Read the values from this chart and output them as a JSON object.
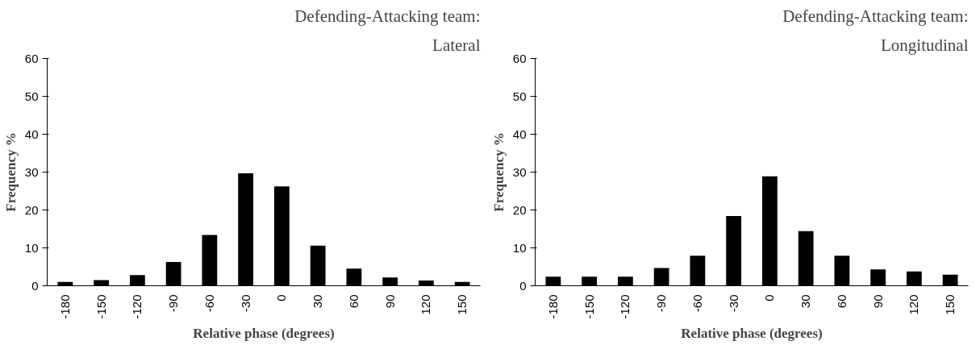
{
  "chart_data": [
    {
      "type": "bar",
      "title": "Defending-Attacking team:",
      "subtitle": "Lateral",
      "xlabel": "Relative phase (degrees)",
      "ylabel": "Frequency %",
      "categories": [
        "-180",
        "-150",
        "-120",
        "-90",
        "-60",
        "-30",
        "0",
        "30",
        "60",
        "90",
        "120",
        "150"
      ],
      "values": [
        1.0,
        1.5,
        2.8,
        6.3,
        13.4,
        29.7,
        26.2,
        10.6,
        4.5,
        2.2,
        1.4,
        1.0
      ],
      "color": "#000000",
      "ylim": [
        0,
        60
      ],
      "yticks": [
        0,
        10,
        20,
        30,
        40,
        50,
        60
      ],
      "grid": false
    },
    {
      "type": "bar",
      "title": "Defending-Attacking team:",
      "subtitle": "Longitudinal",
      "xlabel": "Relative phase (degrees)",
      "ylabel": "Frequency %",
      "categories": [
        "-180",
        "-150",
        "-120",
        "-90",
        "-60",
        "-30",
        "0",
        "30",
        "60",
        "90",
        "120",
        "150"
      ],
      "values": [
        2.4,
        2.4,
        2.4,
        4.7,
        7.9,
        18.4,
        28.9,
        14.4,
        7.9,
        4.3,
        3.8,
        2.9
      ],
      "color": "#000000",
      "ylim": [
        0,
        60
      ],
      "yticks": [
        0,
        10,
        20,
        30,
        40,
        50,
        60
      ],
      "grid": false
    }
  ]
}
